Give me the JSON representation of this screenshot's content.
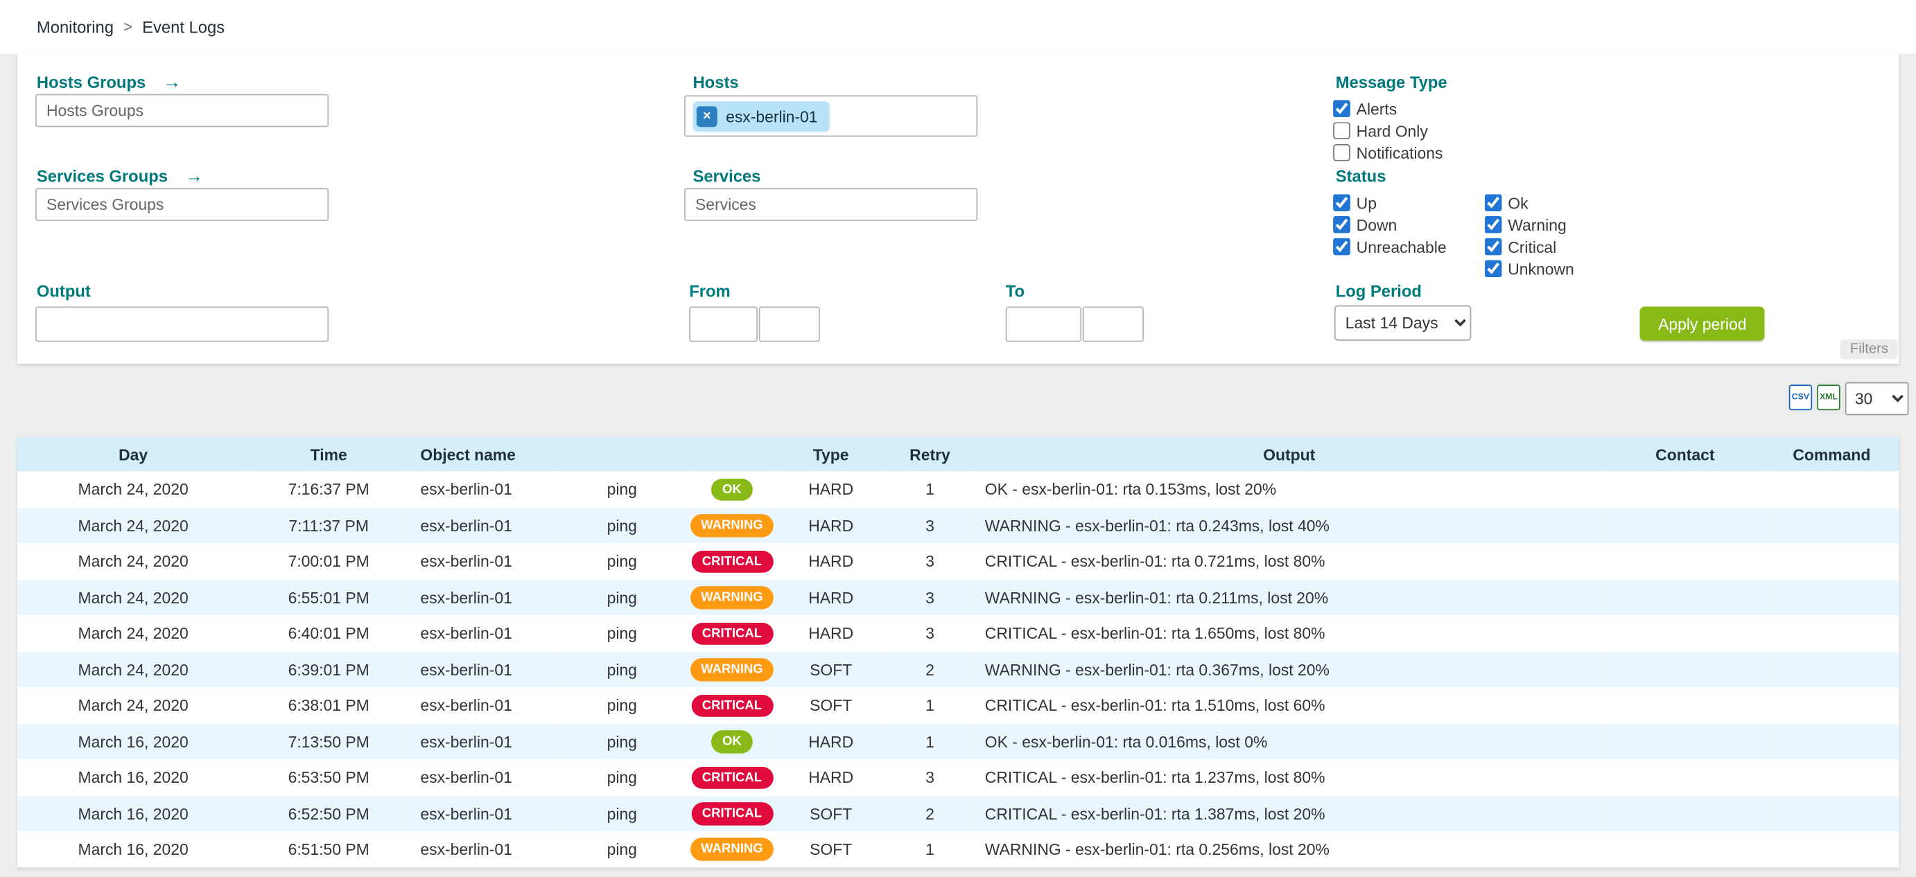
{
  "breadcrumb": {
    "items": [
      "Monitoring",
      "Event Logs"
    ],
    "separator": ">"
  },
  "filter_panel": {
    "hosts_groups": {
      "label": "Hosts Groups",
      "placeholder": "Hosts Groups",
      "arrow_icon": "→"
    },
    "services_groups": {
      "label": "Services Groups",
      "placeholder": "Services Groups",
      "arrow_icon": "→"
    },
    "output": {
      "label": "Output",
      "value": ""
    },
    "hosts": {
      "label": "Hosts",
      "chips": [
        {
          "label": "esx-berlin-01",
          "remove_icon": "×"
        }
      ]
    },
    "services": {
      "label": "Services",
      "placeholder": "Services"
    },
    "from": {
      "label": "From",
      "date": "",
      "time": ""
    },
    "to": {
      "label": "To",
      "date": "",
      "time": ""
    },
    "message_type": {
      "label": "Message Type",
      "options": [
        {
          "label": "Alerts",
          "checked": true
        },
        {
          "label": "Hard Only",
          "checked": false
        },
        {
          "label": "Notifications",
          "checked": false
        }
      ]
    },
    "status": {
      "label": "Status",
      "column1": [
        {
          "label": "Up",
          "checked": true
        },
        {
          "label": "Down",
          "checked": true
        },
        {
          "label": "Unreachable",
          "checked": true
        }
      ],
      "column2": [
        {
          "label": "Ok",
          "checked": true
        },
        {
          "label": "Warning",
          "checked": true
        },
        {
          "label": "Critical",
          "checked": true
        },
        {
          "label": "Unknown",
          "checked": true
        }
      ]
    },
    "log_period": {
      "label": "Log Period",
      "selected": "Last 14 Days"
    },
    "apply_button_label": "Apply period",
    "filters_toggle_label": "Filters"
  },
  "toolbar": {
    "csv_label": "CSV",
    "xml_label": "XML",
    "page_size": "30"
  },
  "table": {
    "headers": [
      "Day",
      "Time",
      "Object name",
      "",
      "",
      "Type",
      "Retry",
      "Output",
      "Contact",
      "Command"
    ],
    "rows": [
      {
        "day": "March 24, 2020",
        "time": "7:16:37 PM",
        "object_name": "esx-berlin-01",
        "service": "ping",
        "status": "OK",
        "type": "HARD",
        "retry": "1",
        "output": "OK - esx-berlin-01: rta 0.153ms, lost 20%",
        "contact": "",
        "command": ""
      },
      {
        "day": "March 24, 2020",
        "time": "7:11:37 PM",
        "object_name": "esx-berlin-01",
        "service": "ping",
        "status": "WARNING",
        "type": "HARD",
        "retry": "3",
        "output": "WARNING - esx-berlin-01: rta 0.243ms, lost 40%",
        "contact": "",
        "command": ""
      },
      {
        "day": "March 24, 2020",
        "time": "7:00:01 PM",
        "object_name": "esx-berlin-01",
        "service": "ping",
        "status": "CRITICAL",
        "type": "HARD",
        "retry": "3",
        "output": "CRITICAL - esx-berlin-01: rta 0.721ms, lost 80%",
        "contact": "",
        "command": ""
      },
      {
        "day": "March 24, 2020",
        "time": "6:55:01 PM",
        "object_name": "esx-berlin-01",
        "service": "ping",
        "status": "WARNING",
        "type": "HARD",
        "retry": "3",
        "output": "WARNING - esx-berlin-01: rta 0.211ms, lost 20%",
        "contact": "",
        "command": ""
      },
      {
        "day": "March 24, 2020",
        "time": "6:40:01 PM",
        "object_name": "esx-berlin-01",
        "service": "ping",
        "status": "CRITICAL",
        "type": "HARD",
        "retry": "3",
        "output": "CRITICAL - esx-berlin-01: rta 1.650ms, lost 80%",
        "contact": "",
        "command": ""
      },
      {
        "day": "March 24, 2020",
        "time": "6:39:01 PM",
        "object_name": "esx-berlin-01",
        "service": "ping",
        "status": "WARNING",
        "type": "SOFT",
        "retry": "2",
        "output": "WARNING - esx-berlin-01: rta 0.367ms, lost 20%",
        "contact": "",
        "command": ""
      },
      {
        "day": "March 24, 2020",
        "time": "6:38:01 PM",
        "object_name": "esx-berlin-01",
        "service": "ping",
        "status": "CRITICAL",
        "type": "SOFT",
        "retry": "1",
        "output": "CRITICAL - esx-berlin-01: rta 1.510ms, lost 60%",
        "contact": "",
        "command": ""
      },
      {
        "day": "March 16, 2020",
        "time": "7:13:50 PM",
        "object_name": "esx-berlin-01",
        "service": "ping",
        "status": "OK",
        "type": "HARD",
        "retry": "1",
        "output": "OK - esx-berlin-01: rta 0.016ms, lost 0%",
        "contact": "",
        "command": ""
      },
      {
        "day": "March 16, 2020",
        "time": "6:53:50 PM",
        "object_name": "esx-berlin-01",
        "service": "ping",
        "status": "CRITICAL",
        "type": "HARD",
        "retry": "3",
        "output": "CRITICAL - esx-berlin-01: rta 1.237ms, lost 80%",
        "contact": "",
        "command": ""
      },
      {
        "day": "March 16, 2020",
        "time": "6:52:50 PM",
        "object_name": "esx-berlin-01",
        "service": "ping",
        "status": "CRITICAL",
        "type": "SOFT",
        "retry": "2",
        "output": "CRITICAL - esx-berlin-01: rta 1.387ms, lost 20%",
        "contact": "",
        "command": ""
      },
      {
        "day": "March 16, 2020",
        "time": "6:51:50 PM",
        "object_name": "esx-berlin-01",
        "service": "ping",
        "status": "WARNING",
        "type": "SOFT",
        "retry": "1",
        "output": "WARNING - esx-berlin-01: rta 0.256ms, lost 20%",
        "contact": "",
        "command": ""
      }
    ]
  },
  "colors": {
    "label_teal": "#00797d",
    "status_ok": "#88b917",
    "status_warning": "#ff9a13",
    "status_critical": "#e00b3c",
    "checkbox_blue": "#2175d4",
    "apply_green": "#88b917",
    "header_bg": "#d4eefa",
    "row_alt_bg": "#eaf6fd",
    "chip_bg": "#b8e2f8",
    "chip_remove_bg": "#2e7fc0",
    "csv_blue": "#1565c0",
    "xml_green": "#2e7d32"
  }
}
